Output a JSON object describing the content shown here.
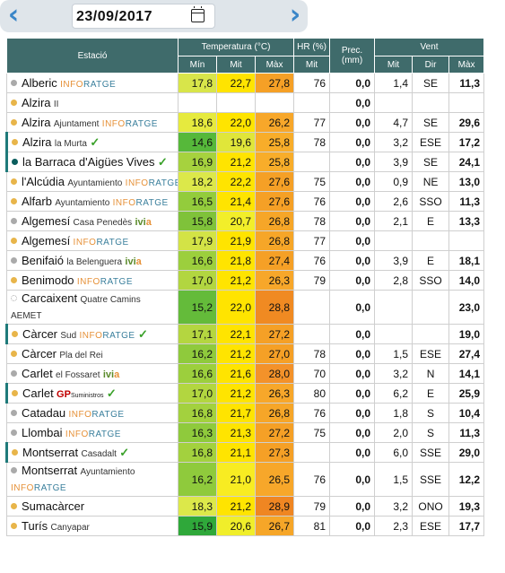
{
  "date_nav": {
    "prev_icon": "chevron-left-icon",
    "next_icon": "chevron-right-icon",
    "date_value": "23/09/2017",
    "calendar_icon": "calendar-icon"
  },
  "table": {
    "headers": {
      "station": "Estació",
      "temperature": "Temperatura (°C)",
      "humidity": "HR (%)",
      "precip": "Prec. (mm)",
      "wind": "Vent",
      "min": "Mín",
      "avg": "Mit",
      "max": "Màx",
      "hr_avg": "Mit",
      "wind_avg": "Mit",
      "wind_dir": "Dir",
      "wind_max": "Màx"
    },
    "rows": [
      {
        "name": "Alberic",
        "sub": "",
        "brand": "INFORATGE",
        "dot": "g",
        "check": false,
        "min": "17,8",
        "avg": "22,7",
        "max": "27,8",
        "hr": "76",
        "prec": "0,0",
        "wavg": "1,4",
        "wdir": "SE",
        "wmax": "11,3",
        "cmin": "#d8e54a",
        "cavg": "#ffe400",
        "cmax": "#f5a026"
      },
      {
        "name": "Alzira",
        "sub": "II",
        "brand": "",
        "dot": "y",
        "check": false,
        "min": "",
        "avg": "",
        "max": "",
        "hr": "",
        "prec": "0,0",
        "wavg": "",
        "wdir": "",
        "wmax": "",
        "cmin": "#fff",
        "cavg": "#fff",
        "cmax": "#fff"
      },
      {
        "name": "Alzira",
        "sub": "Ajuntament",
        "brand": "INFORATGE",
        "dot": "y",
        "check": false,
        "min": "18,6",
        "avg": "22,0",
        "max": "26,2",
        "hr": "77",
        "prec": "0,0",
        "wavg": "4,7",
        "wdir": "SE",
        "wmax": "29,6",
        "cmin": "#e6ea3e",
        "cavg": "#ffe400",
        "cmax": "#f7a72a"
      },
      {
        "name": "Alzira",
        "sub": "la Murta",
        "brand": "",
        "dot": "y",
        "check": true,
        "min": "14,6",
        "avg": "19,6",
        "max": "25,8",
        "hr": "78",
        "prec": "0,0",
        "wavg": "3,2",
        "wdir": "ESE",
        "wmax": "17,2",
        "cmin": "#56b83a",
        "cavg": "#e0e63a",
        "cmax": "#f8ad2a"
      },
      {
        "name": "la Barraca d'Aigües Vives",
        "sub": "",
        "brand": "",
        "dot": "t",
        "check": true,
        "min": "16,9",
        "avg": "21,2",
        "max": "25,8",
        "hr": "",
        "prec": "0,0",
        "wavg": "3,9",
        "wdir": "SE",
        "wmax": "24,1",
        "cmin": "#a6d23e",
        "cavg": "#ffe400",
        "cmax": "#f8ad2a"
      },
      {
        "name": "l'Alcúdia",
        "sub": "Ayuntamiento",
        "brand": "INFORATGE",
        "dot": "y",
        "check": false,
        "min": "18,2",
        "avg": "22,2",
        "max": "27,6",
        "hr": "75",
        "prec": "0,0",
        "wavg": "0,9",
        "wdir": "NE",
        "wmax": "13,0",
        "cmin": "#dce84a",
        "cavg": "#ffe400",
        "cmax": "#f5a026"
      },
      {
        "name": "Alfarb",
        "sub": "Ayuntamiento",
        "brand": "INFORATGE",
        "dot": "y",
        "check": false,
        "min": "16,5",
        "avg": "21,4",
        "max": "27,6",
        "hr": "76",
        "prec": "0,0",
        "wavg": "2,6",
        "wdir": "SSO",
        "wmax": "11,3",
        "cmin": "#93cc3c",
        "cavg": "#ffe400",
        "cmax": "#f5a026"
      },
      {
        "name": "Algemesí",
        "sub": "Casa Penedès",
        "brand": "ivia",
        "dot": "g",
        "check": false,
        "min": "15,8",
        "avg": "20,7",
        "max": "26,8",
        "hr": "78",
        "prec": "0,0",
        "wavg": "2,1",
        "wdir": "E",
        "wmax": "13,3",
        "cmin": "#7fc23a",
        "cavg": "#f2ee2a",
        "cmax": "#f6a628"
      },
      {
        "name": "Algemesí",
        "sub": "",
        "brand": "INFORATGE",
        "dot": "y",
        "check": false,
        "min": "17,9",
        "avg": "21,9",
        "max": "26,8",
        "hr": "77",
        "prec": "0,0",
        "wavg": "",
        "wdir": "",
        "wmax": "",
        "cmin": "#d3e346",
        "cavg": "#ffe400",
        "cmax": "#f6a628"
      },
      {
        "name": "Benifaió",
        "sub": "la Belenguera",
        "brand": "ivia",
        "dot": "g",
        "check": false,
        "min": "16,6",
        "avg": "21,8",
        "max": "27,4",
        "hr": "76",
        "prec": "0,0",
        "wavg": "3,9",
        "wdir": "E",
        "wmax": "18,1",
        "cmin": "#9ccf3d",
        "cavg": "#ffe400",
        "cmax": "#f5a026"
      },
      {
        "name": "Benimodo",
        "sub": "",
        "brand": "INFORATGE",
        "dot": "y",
        "check": false,
        "min": "17,0",
        "avg": "21,2",
        "max": "26,3",
        "hr": "79",
        "prec": "0,0",
        "wavg": "2,8",
        "wdir": "SSO",
        "wmax": "14,0",
        "cmin": "#b2d640",
        "cavg": "#ffe400",
        "cmax": "#f7a72a"
      },
      {
        "name": "Carcaixent",
        "sub": "Quatre Camins",
        "brand": "AEMET",
        "dot": "w",
        "check": false,
        "tall": true,
        "min": "15,2",
        "avg": "22,0",
        "max": "28,8",
        "hr": "",
        "prec": "0,0",
        "wavg": "",
        "wdir": "",
        "wmax": "23,0",
        "cmin": "#64bb3a",
        "cavg": "#ffe400",
        "cmax": "#f08a22"
      },
      {
        "name": "Càrcer",
        "sud": true,
        "sub": "Sud",
        "brand": "INFORATGE",
        "dot": "y",
        "check": true,
        "min": "17,1",
        "avg": "22,1",
        "max": "27,2",
        "hr": "",
        "prec": "0,0",
        "wavg": "",
        "wdir": "",
        "wmax": "19,0",
        "cmin": "#b4d640",
        "cavg": "#ffe400",
        "cmax": "#f5a026"
      },
      {
        "name": "Càrcer",
        "sub": "Pla del Rei",
        "brand": "",
        "dot": "y",
        "check": false,
        "min": "16,2",
        "avg": "21,2",
        "max": "27,0",
        "hr": "78",
        "prec": "0,0",
        "wavg": "1,5",
        "wdir": "ESE",
        "wmax": "27,4",
        "cmin": "#8fca3c",
        "cavg": "#ffe400",
        "cmax": "#f5a026"
      },
      {
        "name": "Carlet",
        "sub": "el Fossaret",
        "brand": "ivia",
        "dot": "g",
        "check": false,
        "min": "16,6",
        "avg": "21,6",
        "max": "28,0",
        "hr": "70",
        "prec": "0,0",
        "wavg": "3,2",
        "wdir": "N",
        "wmax": "14,1",
        "cmin": "#9ccf3d",
        "cavg": "#ffe400",
        "cmax": "#f3922a"
      },
      {
        "name": "Carlet",
        "sub": "",
        "brand": "GP",
        "dot": "y",
        "check": true,
        "min": "17,0",
        "avg": "21,2",
        "max": "26,3",
        "hr": "80",
        "prec": "0,0",
        "wavg": "6,2",
        "wdir": "E",
        "wmax": "25,9",
        "cmin": "#b2d640",
        "cavg": "#ffe400",
        "cmax": "#f7a72a"
      },
      {
        "name": "Catadau",
        "sub": "",
        "brand": "INFORATGE",
        "dot": "g",
        "check": false,
        "min": "16,8",
        "avg": "21,7",
        "max": "26,8",
        "hr": "76",
        "prec": "0,0",
        "wavg": "1,8",
        "wdir": "S",
        "wmax": "10,4",
        "cmin": "#a3d13e",
        "cavg": "#ffe400",
        "cmax": "#f6a628"
      },
      {
        "name": "Llombai",
        "sub": "",
        "brand": "INFORATGE",
        "dot": "g",
        "check": false,
        "min": "16,3",
        "avg": "21,3",
        "max": "27,2",
        "hr": "75",
        "prec": "0,0",
        "wavg": "2,0",
        "wdir": "S",
        "wmax": "11,3",
        "cmin": "#8fca3c",
        "cavg": "#ffe400",
        "cmax": "#f5a026"
      },
      {
        "name": "Montserrat",
        "sub": "Casadalt",
        "brand": "",
        "dot": "y",
        "check": true,
        "min": "16,8",
        "avg": "21,1",
        "max": "27,3",
        "hr": "",
        "prec": "0,0",
        "wavg": "6,0",
        "wdir": "SSE",
        "wmax": "29,0",
        "cmin": "#a3d13e",
        "cavg": "#ffe400",
        "cmax": "#f5a026"
      },
      {
        "name": "Montserrat",
        "sub": "Ayuntamiento",
        "brand": "INFORATGE",
        "dot": "g",
        "check": false,
        "tall": true,
        "min": "16,2",
        "avg": "21,0",
        "max": "26,5",
        "hr": "76",
        "prec": "0,0",
        "wavg": "1,5",
        "wdir": "SSE",
        "wmax": "12,2",
        "cmin": "#8fca3c",
        "cavg": "#f8ec22",
        "cmax": "#f7a72a"
      },
      {
        "name": "Sumacàrcer",
        "sub": "",
        "brand": "",
        "dot": "y",
        "check": false,
        "min": "18,3",
        "avg": "21,2",
        "max": "28,9",
        "hr": "79",
        "prec": "0,0",
        "wavg": "3,2",
        "wdir": "ONO",
        "wmax": "19,3",
        "cmin": "#dce84a",
        "cavg": "#ffe400",
        "cmax": "#ef8622"
      },
      {
        "name": "Turís",
        "sub": "Canyapar",
        "brand": "",
        "dot": "y",
        "check": false,
        "min": "15,9",
        "avg": "20,6",
        "max": "26,7",
        "hr": "81",
        "prec": "0,0",
        "wavg": "2,3",
        "wdir": "ESE",
        "wmax": "17,7",
        "cmin": "#2fa83a",
        "cavg": "#f0ee2a",
        "cmax": "#f6a628"
      }
    ]
  }
}
